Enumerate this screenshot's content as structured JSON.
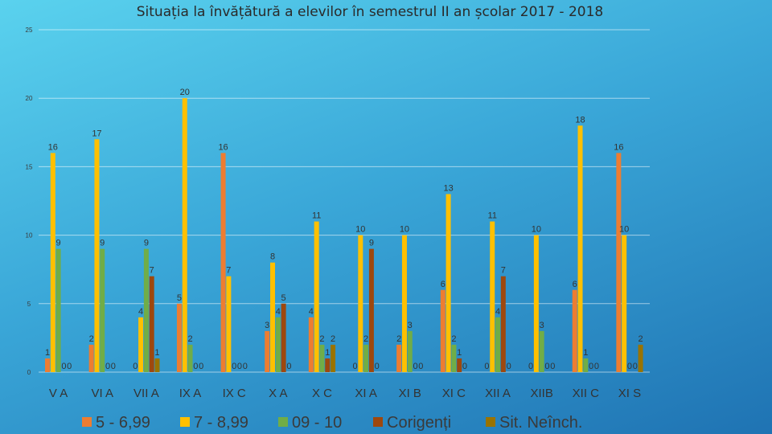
{
  "chart_data": {
    "type": "bar",
    "title": "Situația la învățătură a elevilor în semestrul II an școlar 2017 - 2018",
    "xlabel": "",
    "ylabel": "",
    "ylim": [
      0,
      25
    ],
    "y_ticks": [
      0,
      5,
      10,
      15,
      20,
      25
    ],
    "grid": true,
    "legend_position": "bottom",
    "categories": [
      "V A",
      "VI A",
      "VII A",
      "IX A",
      "IX C",
      "X A",
      "X C",
      "XI A",
      "XI B",
      "XI C",
      "XII A",
      "XIIB",
      "XII C",
      "XI S"
    ],
    "series": [
      {
        "name": "5 - 6,99",
        "color": "#ed7d31",
        "values": [
          1,
          2,
          0,
          5,
          16,
          3,
          4,
          0,
          2,
          6,
          0,
          0,
          6,
          16
        ]
      },
      {
        "name": "7 - 8,99",
        "color": "#ffc000",
        "values": [
          16,
          17,
          4,
          20,
          7,
          8,
          11,
          10,
          10,
          13,
          11,
          10,
          18,
          10
        ]
      },
      {
        "name": "09 - 10",
        "color": "#70ad47",
        "values": [
          9,
          9,
          9,
          2,
          0,
          4,
          2,
          2,
          3,
          2,
          4,
          3,
          1,
          0
        ]
      },
      {
        "name": "Corigenți",
        "color": "#9e480e",
        "values": [
          0,
          0,
          7,
          0,
          0,
          5,
          1,
          9,
          0,
          1,
          7,
          0,
          0,
          0
        ]
      },
      {
        "name": "Sit. Neînch.",
        "color": "#997300",
        "values": [
          0,
          0,
          1,
          0,
          0,
          0,
          2,
          0,
          0,
          0,
          0,
          0,
          0,
          2
        ]
      }
    ]
  }
}
